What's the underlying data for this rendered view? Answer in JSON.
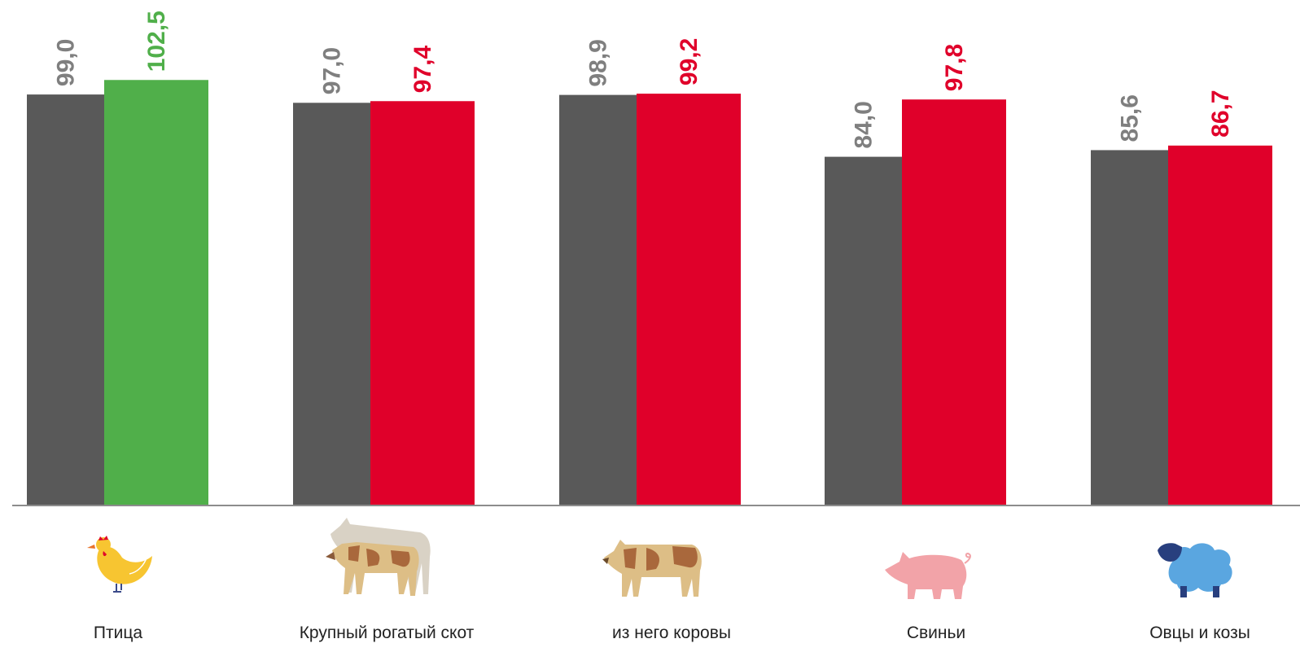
{
  "chart_data": {
    "type": "bar",
    "title": "",
    "xlabel": "",
    "ylabel": "",
    "ylim": [
      0,
      105
    ],
    "grid": false,
    "legend": "none",
    "categories": [
      "Птица",
      "Крупный рогатый скот",
      "из него коровы",
      "Свиньи",
      "Овцы и козы"
    ],
    "category_icons": [
      "chicken-icon",
      "cattle-icon",
      "cow-icon",
      "pig-icon",
      "sheep-icon"
    ],
    "series": [
      {
        "values": [
          99.0,
          97.0,
          98.9,
          84.0,
          85.6
        ],
        "labels": [
          "99,0",
          "97,0",
          "98,9",
          "84,0",
          "85,6"
        ],
        "color": "#595959"
      },
      {
        "values": [
          102.5,
          97.4,
          99.2,
          97.8,
          86.7
        ],
        "labels": [
          "102,5",
          "97,4",
          "99,2",
          "97,8",
          "86,7"
        ],
        "colors": [
          "#50AF4A",
          "#E0002A",
          "#E0002A",
          "#E0002A",
          "#E0002A"
        ]
      }
    ]
  }
}
